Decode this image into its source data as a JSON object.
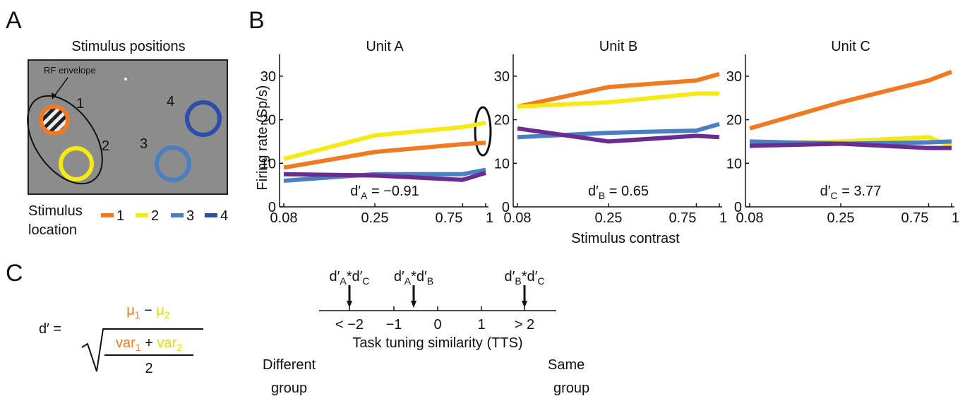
{
  "panel_a": {
    "letter": "A",
    "title": "Stimulus positions",
    "rf_label": "RF envelope",
    "positions": [
      "1",
      "2",
      "3",
      "4"
    ],
    "legend_title": [
      "Stimulus",
      "location"
    ],
    "legend": [
      "1",
      "2",
      "3",
      "4"
    ]
  },
  "panel_b": {
    "letter": "B"
  },
  "chart_data": [
    {
      "type": "line",
      "title": "Unit A",
      "x": [
        0.08,
        0.25,
        0.75,
        1
      ],
      "xlim": [
        0.08,
        1
      ],
      "xticks": [
        0.08,
        0.25,
        0.75,
        1
      ],
      "xscale": "log",
      "ylim": [
        0,
        35
      ],
      "yticks": [
        0,
        10,
        20,
        30
      ],
      "ylabel": "Firing rate (Sp/s)",
      "series": [
        {
          "color": "#f07a22",
          "values": [
            9,
            12.6,
            14.4,
            14.7
          ]
        },
        {
          "color": "#f5ea14",
          "values": [
            11,
            16.4,
            18.3,
            19.3
          ]
        },
        {
          "color": "#4a7fc1",
          "values": [
            6,
            7.5,
            7.5,
            8.5
          ]
        },
        {
          "color": "#6b2c91",
          "values": [
            7.5,
            7.2,
            6.2,
            7.8
          ]
        }
      ],
      "annotation": {
        "symbol": "d′",
        "subscript": "A",
        "text": " = −0.91"
      }
    },
    {
      "type": "line",
      "title": "Unit B",
      "x": [
        0.08,
        0.25,
        0.75,
        1
      ],
      "xlim": [
        0.08,
        1
      ],
      "xticks": [
        0.08,
        0.25,
        0.75,
        1
      ],
      "xscale": "log",
      "ylim": [
        0,
        35
      ],
      "yticks": [
        0,
        10,
        20,
        30
      ],
      "xlabel": "Stimulus contrast",
      "series": [
        {
          "color": "#f07a22",
          "values": [
            23,
            27.5,
            29,
            30.5
          ]
        },
        {
          "color": "#f5ea14",
          "values": [
            23,
            24,
            26,
            26
          ]
        },
        {
          "color": "#4a7fc1",
          "values": [
            16,
            17,
            17.5,
            19
          ]
        },
        {
          "color": "#6b2c91",
          "values": [
            18,
            15,
            16.3,
            16
          ]
        }
      ],
      "annotation": {
        "symbol": "d′",
        "subscript": "B",
        "text": " = 0.65"
      }
    },
    {
      "type": "line",
      "title": "Unit C",
      "x": [
        0.08,
        0.25,
        0.75,
        1
      ],
      "xlim": [
        0.08,
        1
      ],
      "xticks": [
        0.08,
        0.25,
        0.75,
        1
      ],
      "xscale": "log",
      "ylim": [
        0,
        35
      ],
      "yticks": [
        0,
        10,
        20,
        30
      ],
      "series": [
        {
          "color": "#f07a22",
          "values": [
            18,
            24,
            29,
            31
          ]
        },
        {
          "color": "#f5ea14",
          "values": [
            14.5,
            15,
            16,
            14
          ]
        },
        {
          "color": "#4a7fc1",
          "values": [
            15,
            14.5,
            14.8,
            15
          ]
        },
        {
          "color": "#6b2c91",
          "values": [
            14,
            14.5,
            13.5,
            13.5
          ]
        }
      ],
      "annotation": {
        "symbol": "d′",
        "subscript": "C",
        "text": " = 3.77"
      }
    }
  ],
  "panel_c": {
    "letter": "C",
    "formula": {
      "lhs": "d′ =",
      "mu1": "μ",
      "mu1_sub": "1",
      "minus": " − ",
      "mu2": "μ",
      "mu2_sub": "2",
      "var1": "var",
      "var1_sub": "1",
      "plus": " + ",
      "var2": "var",
      "var2_sub": "2",
      "denominator": "2"
    },
    "scale": {
      "ticks": [
        "< −2",
        "−1",
        "0",
        "1",
        "> 2"
      ],
      "label": "Task tuning similarity (TTS)",
      "left": [
        "Different",
        "group"
      ],
      "right": [
        "Same",
        "group"
      ],
      "markers": [
        {
          "a": "d′",
          "a_sub": "A",
          "star": "*",
          "b": "d′",
          "b_sub": "C"
        },
        {
          "a": "d′",
          "a_sub": "A",
          "star": "*",
          "b": "d′",
          "b_sub": "B"
        },
        {
          "a": "d′",
          "a_sub": "B",
          "star": "*",
          "b": "d′",
          "b_sub": "C"
        }
      ]
    }
  }
}
